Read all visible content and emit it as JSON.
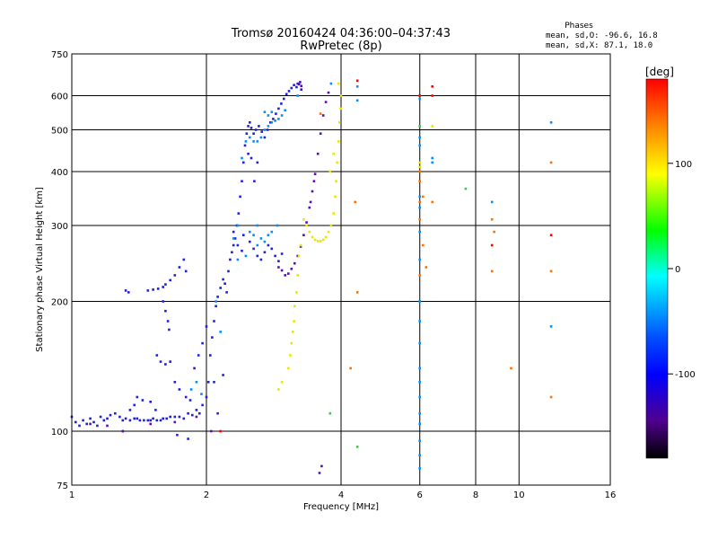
{
  "chart_data": {
    "type": "scatter",
    "title": "Tromsø 20160424 04:36:00–04:37:43",
    "subtitle": "RwPretec (8p)",
    "xlabel": "Frequency [MHz]",
    "ylabel": "Stationary phase Virtual Height [km]",
    "x_scale": "log",
    "y_scale": "log",
    "xlim": [
      1,
      16
    ],
    "ylim": [
      75,
      750
    ],
    "x_ticks": [
      1,
      2,
      4,
      6,
      8,
      10,
      16
    ],
    "x_tick_labels": [
      "1",
      "2",
      "4",
      "6",
      "8",
      "10",
      "16"
    ],
    "y_ticks": [
      75,
      100,
      200,
      300,
      400,
      500,
      600,
      750
    ],
    "y_tick_labels": [
      "75",
      "100",
      "200",
      "300",
      "400",
      "500",
      "600",
      "750"
    ],
    "grid": true,
    "phases_box": {
      "title": "Phases",
      "line1": "mean, sd,O: -96.6, 16.8",
      "line2": "mean, sd,X:  87.1, 18.0"
    },
    "colorbar": {
      "label": "[deg]",
      "range": [
        -180,
        180
      ],
      "ticks": [
        100,
        0,
        -100
      ],
      "tick_labels": [
        "100",
        "0",
        "-100"
      ],
      "colors": [
        "#ff0000",
        "#ff8000",
        "#ffff00",
        "#00ff00",
        "#00ffff",
        "#0050ff",
        "#0000ff",
        "#500090",
        "#000000"
      ]
    },
    "series": [
      {
        "phase": -105,
        "color": "#2020e0",
        "points": [
          [
            1.0,
            108
          ],
          [
            1.02,
            105
          ],
          [
            1.04,
            103
          ],
          [
            1.06,
            106
          ],
          [
            1.08,
            104
          ],
          [
            1.1,
            107
          ],
          [
            1.12,
            105
          ],
          [
            1.14,
            103
          ],
          [
            1.16,
            108
          ],
          [
            1.18,
            106
          ],
          [
            1.2,
            107
          ],
          [
            1.22,
            109
          ],
          [
            1.25,
            110
          ],
          [
            1.28,
            108
          ],
          [
            1.3,
            106
          ],
          [
            1.32,
            107
          ],
          [
            1.35,
            106
          ],
          [
            1.38,
            107
          ],
          [
            1.4,
            107
          ],
          [
            1.42,
            106
          ],
          [
            1.45,
            106
          ],
          [
            1.48,
            106
          ],
          [
            1.5,
            106
          ],
          [
            1.52,
            107
          ],
          [
            1.55,
            106
          ],
          [
            1.58,
            106
          ],
          [
            1.6,
            107
          ],
          [
            1.63,
            107
          ],
          [
            1.66,
            108
          ],
          [
            1.7,
            108
          ],
          [
            1.74,
            108
          ],
          [
            1.78,
            107
          ],
          [
            1.82,
            110
          ],
          [
            1.86,
            109
          ],
          [
            1.9,
            112
          ],
          [
            1.93,
            110
          ],
          [
            1.96,
            115
          ],
          [
            2.0,
            120
          ],
          [
            2.02,
            130
          ],
          [
            2.04,
            150
          ],
          [
            2.06,
            165
          ],
          [
            2.08,
            180
          ],
          [
            2.1,
            195
          ],
          [
            2.12,
            205
          ],
          [
            2.15,
            215
          ],
          [
            2.18,
            225
          ],
          [
            2.2,
            220
          ],
          [
            2.22,
            210
          ],
          [
            2.24,
            235
          ],
          [
            2.26,
            250
          ],
          [
            2.28,
            260
          ],
          [
            2.3,
            270
          ],
          [
            2.32,
            280
          ],
          [
            2.34,
            300
          ],
          [
            2.36,
            320
          ],
          [
            2.38,
            350
          ],
          [
            2.4,
            380
          ],
          [
            2.42,
            420
          ],
          [
            2.44,
            460
          ],
          [
            2.46,
            490
          ],
          [
            2.48,
            510
          ],
          [
            2.5,
            520
          ],
          [
            2.52,
            505
          ],
          [
            2.55,
            490
          ],
          [
            2.58,
            500
          ],
          [
            2.62,
            510
          ],
          [
            2.66,
            495
          ],
          [
            2.7,
            480
          ],
          [
            2.74,
            500
          ],
          [
            2.78,
            520
          ],
          [
            2.82,
            530
          ],
          [
            2.86,
            545
          ],
          [
            2.9,
            560
          ],
          [
            2.94,
            575
          ],
          [
            2.98,
            590
          ],
          [
            3.02,
            605
          ],
          [
            3.06,
            615
          ],
          [
            3.1,
            625
          ],
          [
            3.14,
            635
          ],
          [
            3.18,
            628
          ],
          [
            3.22,
            638
          ],
          [
            3.26,
            620
          ],
          [
            2.5,
            275
          ],
          [
            2.55,
            265
          ],
          [
            2.6,
            255
          ],
          [
            2.65,
            250
          ],
          [
            2.7,
            260
          ],
          [
            2.75,
            270
          ],
          [
            2.8,
            265
          ],
          [
            2.85,
            255
          ],
          [
            2.9,
            248
          ],
          [
            2.95,
            258
          ],
          [
            2.4,
            262
          ],
          [
            2.42,
            285
          ],
          [
            2.3,
            290
          ],
          [
            2.35,
            270
          ],
          [
            1.32,
            212
          ],
          [
            1.34,
            210
          ],
          [
            1.48,
            212
          ],
          [
            1.52,
            213
          ],
          [
            1.56,
            214
          ],
          [
            1.6,
            216
          ],
          [
            1.62,
            219
          ],
          [
            1.66,
            224
          ],
          [
            1.7,
            230
          ],
          [
            1.74,
            240
          ],
          [
            1.78,
            250
          ],
          [
            1.8,
            235
          ],
          [
            1.6,
            200
          ],
          [
            1.62,
            190
          ],
          [
            1.64,
            180
          ],
          [
            1.65,
            172
          ],
          [
            1.55,
            150
          ],
          [
            1.58,
            145
          ],
          [
            1.62,
            143
          ],
          [
            1.66,
            145
          ],
          [
            1.4,
            120
          ],
          [
            1.44,
            118
          ],
          [
            1.5,
            117
          ],
          [
            1.54,
            112
          ],
          [
            1.7,
            130
          ],
          [
            1.74,
            125
          ],
          [
            1.8,
            120
          ],
          [
            1.84,
            118
          ],
          [
            1.88,
            140
          ],
          [
            1.92,
            150
          ],
          [
            1.96,
            160
          ],
          [
            2.0,
            175
          ],
          [
            1.72,
            98
          ],
          [
            1.82,
            96
          ],
          [
            1.35,
            112
          ],
          [
            1.38,
            115
          ],
          [
            1.3,
            100
          ],
          [
            2.08,
            130
          ],
          [
            2.12,
            110
          ],
          [
            2.18,
            135
          ],
          [
            2.48,
            440
          ],
          [
            2.52,
            430
          ],
          [
            2.56,
            380
          ],
          [
            2.6,
            420
          ]
        ]
      },
      {
        "phase": -130,
        "color": "#5a10b0",
        "points": [
          [
            3.0,
            230
          ],
          [
            3.05,
            232
          ],
          [
            3.1,
            238
          ],
          [
            3.15,
            245
          ],
          [
            3.2,
            255
          ],
          [
            3.25,
            268
          ],
          [
            3.3,
            285
          ],
          [
            3.35,
            305
          ],
          [
            3.4,
            330
          ],
          [
            3.45,
            360
          ],
          [
            3.5,
            395
          ],
          [
            3.55,
            440
          ],
          [
            3.6,
            490
          ],
          [
            3.65,
            540
          ],
          [
            3.7,
            580
          ],
          [
            3.75,
            610
          ],
          [
            3.2,
            640
          ],
          [
            3.24,
            645
          ],
          [
            3.26,
            632
          ],
          [
            2.9,
            240
          ],
          [
            2.95,
            236
          ],
          [
            3.42,
            340
          ],
          [
            3.48,
            380
          ],
          [
            1.1,
            104
          ],
          [
            1.2,
            103
          ],
          [
            1.3,
            100
          ],
          [
            1.5,
            104
          ],
          [
            1.7,
            105
          ],
          [
            1.9,
            108
          ],
          [
            2.05,
            100
          ],
          [
            3.62,
            83
          ],
          [
            3.58,
            80
          ]
        ]
      },
      {
        "phase": -60,
        "color": "#0090ff",
        "points": [
          [
            2.4,
            430
          ],
          [
            2.45,
            470
          ],
          [
            2.5,
            480
          ],
          [
            2.55,
            470
          ],
          [
            2.6,
            470
          ],
          [
            2.65,
            480
          ],
          [
            2.7,
            500
          ],
          [
            2.75,
            510
          ],
          [
            2.8,
            520
          ],
          [
            2.85,
            525
          ],
          [
            2.9,
            530
          ],
          [
            2.95,
            540
          ],
          [
            3.0,
            555
          ],
          [
            2.7,
            550
          ],
          [
            2.75,
            540
          ],
          [
            2.8,
            550
          ],
          [
            2.5,
            290
          ],
          [
            2.55,
            285
          ],
          [
            2.6,
            300
          ],
          [
            2.65,
            280
          ],
          [
            2.7,
            275
          ],
          [
            2.75,
            285
          ],
          [
            2.8,
            290
          ],
          [
            2.3,
            280
          ],
          [
            2.35,
            300
          ],
          [
            2.88,
            300
          ],
          [
            2.6,
            270
          ],
          [
            1.85,
            125
          ],
          [
            1.9,
            130
          ],
          [
            1.95,
            122
          ],
          [
            2.45,
            255
          ],
          [
            2.1,
            200
          ],
          [
            2.15,
            170
          ],
          [
            3.8,
            640
          ],
          [
            4.35,
            630
          ],
          [
            4.35,
            585
          ],
          [
            6.0,
            590
          ],
          [
            6.0,
            480
          ],
          [
            6.0,
            460
          ],
          [
            6.0,
            350
          ],
          [
            6.0,
            330
          ],
          [
            6.0,
            290
          ],
          [
            6.0,
            250
          ],
          [
            6.0,
            200
          ],
          [
            6.0,
            180
          ],
          [
            6.0,
            160
          ],
          [
            6.0,
            140
          ],
          [
            6.0,
            130
          ],
          [
            6.0,
            120
          ],
          [
            6.0,
            110
          ],
          [
            6.0,
            104
          ],
          [
            6.0,
            95
          ],
          [
            6.0,
            88
          ],
          [
            6.0,
            82
          ],
          [
            6.4,
            430
          ],
          [
            6.4,
            420
          ],
          [
            8.7,
            340
          ],
          [
            11.8,
            520
          ],
          [
            11.8,
            175
          ],
          [
            2.35,
            250
          ],
          [
            3.2,
            600
          ]
        ]
      },
      {
        "phase": 110,
        "color": "#e8e800",
        "points": [
          [
            3.3,
            310
          ],
          [
            3.35,
            300
          ],
          [
            3.4,
            290
          ],
          [
            3.45,
            282
          ],
          [
            3.5,
            278
          ],
          [
            3.55,
            276
          ],
          [
            3.6,
            276
          ],
          [
            3.65,
            278
          ],
          [
            3.7,
            282
          ],
          [
            3.75,
            290
          ],
          [
            3.8,
            300
          ],
          [
            3.85,
            320
          ],
          [
            3.88,
            350
          ],
          [
            3.9,
            380
          ],
          [
            3.92,
            420
          ],
          [
            3.95,
            470
          ],
          [
            3.97,
            520
          ],
          [
            3.99,
            560
          ],
          [
            4.0,
            600
          ],
          [
            3.95,
            640
          ],
          [
            3.25,
            270
          ],
          [
            3.22,
            255
          ],
          [
            3.2,
            230
          ],
          [
            3.18,
            210
          ],
          [
            3.15,
            195
          ],
          [
            3.14,
            180
          ],
          [
            3.12,
            170
          ],
          [
            3.1,
            160
          ],
          [
            3.08,
            150
          ],
          [
            3.05,
            140
          ],
          [
            2.95,
            130
          ],
          [
            2.9,
            125
          ],
          [
            6.0,
            420
          ],
          [
            6.0,
            410
          ],
          [
            6.4,
            510
          ],
          [
            3.85,
            440
          ],
          [
            3.78,
            400
          ]
        ]
      },
      {
        "phase": 150,
        "color": "#ff7000",
        "points": [
          [
            3.6,
            545
          ],
          [
            4.3,
            340
          ],
          [
            4.35,
            210
          ],
          [
            4.2,
            140
          ],
          [
            6.0,
            400
          ],
          [
            6.0,
            380
          ],
          [
            6.0,
            340
          ],
          [
            6.0,
            310
          ],
          [
            6.0,
            230
          ],
          [
            6.1,
            350
          ],
          [
            6.1,
            270
          ],
          [
            6.4,
            340
          ],
          [
            8.7,
            310
          ],
          [
            8.7,
            235
          ],
          [
            8.8,
            290
          ],
          [
            9.6,
            140
          ],
          [
            11.8,
            420
          ],
          [
            11.8,
            120
          ],
          [
            11.8,
            235
          ],
          [
            6.2,
            240
          ]
        ]
      },
      {
        "phase": 175,
        "color": "#ff0000",
        "points": [
          [
            4.35,
            650
          ],
          [
            6.0,
            600
          ],
          [
            6.4,
            630
          ],
          [
            6.4,
            600
          ],
          [
            8.7,
            270
          ],
          [
            11.8,
            285
          ],
          [
            2.15,
            100
          ]
        ]
      },
      {
        "phase": 30,
        "color": "#30d040",
        "points": [
          [
            3.78,
            110
          ],
          [
            4.35,
            92
          ],
          [
            7.6,
            365
          ],
          [
            6.0,
            510
          ]
        ]
      }
    ]
  }
}
